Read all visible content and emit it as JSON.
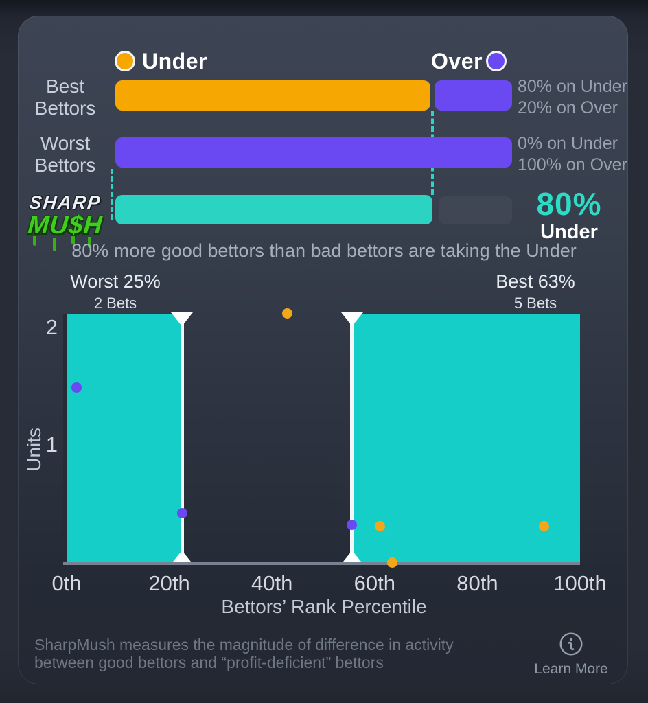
{
  "legend": {
    "under": "Under",
    "over": "Over"
  },
  "colors": {
    "under": "#f7a701",
    "over": "#6b49f2",
    "bar_teal": "#2bd4c2",
    "plot_teal": "#14cec7",
    "summary_value": "#2cdcc6",
    "dotted_line": "#2bd5c3"
  },
  "rows": [
    {
      "label_line1": "Best",
      "label_line2": "Bettors",
      "stat_line1": "80% on Under",
      "stat_line2": "20% on Over"
    },
    {
      "label_line1": "Worst",
      "label_line2": "Bettors",
      "stat_line1": "0% on Under",
      "stat_line2": "100% on Over"
    }
  ],
  "logo": {
    "line1": "SHARP",
    "line2": "MU$H"
  },
  "summary": {
    "value": "80%",
    "label": "Under"
  },
  "subtitle": "80% more good bettors than bad bettors are taking the Under",
  "scatter_headers": {
    "worst": {
      "title": "Worst 25%",
      "subtitle": "2 Bets"
    },
    "best": {
      "title": "Best 63%",
      "subtitle": "5 Bets"
    }
  },
  "axes": {
    "ylabel": "Units",
    "xlabel": "Bettors’ Rank Percentile"
  },
  "footer": {
    "line1": "SharpMush measures the magnitude of difference in activity",
    "line2": "between good bettors and “profit-deficient” bettors",
    "learn_more": "Learn More"
  },
  "chart_data": [
    {
      "type": "bar",
      "orientation": "horizontal_stacked",
      "categories": [
        "Best Bettors",
        "Worst Bettors"
      ],
      "series": [
        {
          "name": "Under",
          "color": "#f7a701",
          "values": [
            80,
            0
          ]
        },
        {
          "name": "Over",
          "color": "#6b49f2",
          "values": [
            20,
            100
          ]
        }
      ],
      "value_labels": [
        [
          "80% on Under",
          "20% on Over"
        ],
        [
          "0% on Under",
          "100% on Over"
        ]
      ],
      "summary_bar": {
        "name": "SharpMush",
        "value": 80,
        "display": "80%",
        "side": "Under",
        "color": "#2bd4c2"
      },
      "title": "80% more good bettors than bad bettors are taking the Under"
    },
    {
      "type": "scatter",
      "xlabel": "Bettors’ Rank Percentile",
      "ylabel": "Units",
      "xlim": [
        0,
        100
      ],
      "ylim": [
        0,
        2.15
      ],
      "x_ticks": [
        "0th",
        "20th",
        "40th",
        "60th",
        "80th",
        "100th"
      ],
      "y_ticks": [
        1,
        2
      ],
      "grid": false,
      "series": [
        {
          "name": "Under",
          "color": "#f2a71b",
          "points": [
            {
              "x": 43,
              "y": 2.13
            },
            {
              "x": 61,
              "y": 0.32
            },
            {
              "x": 63.5,
              "y": 0.01
            },
            {
              "x": 93,
              "y": 0.32
            }
          ]
        },
        {
          "name": "Over",
          "color": "#6b49f2",
          "points": [
            {
              "x": 2,
              "y": 1.5
            },
            {
              "x": 22.5,
              "y": 0.43
            },
            {
              "x": 55.6,
              "y": 0.33
            }
          ]
        }
      ],
      "regions": [
        {
          "label": "Worst 25%",
          "sublabel": "2 Bets",
          "x_from": 0,
          "x_to": 22.5,
          "color": "#14cec7"
        },
        {
          "label": "Best 63%",
          "sublabel": "5 Bets",
          "x_from": 55.6,
          "x_to": 100,
          "color": "#14cec7"
        }
      ],
      "markers_pct": [
        22.5,
        55.6
      ]
    }
  ]
}
